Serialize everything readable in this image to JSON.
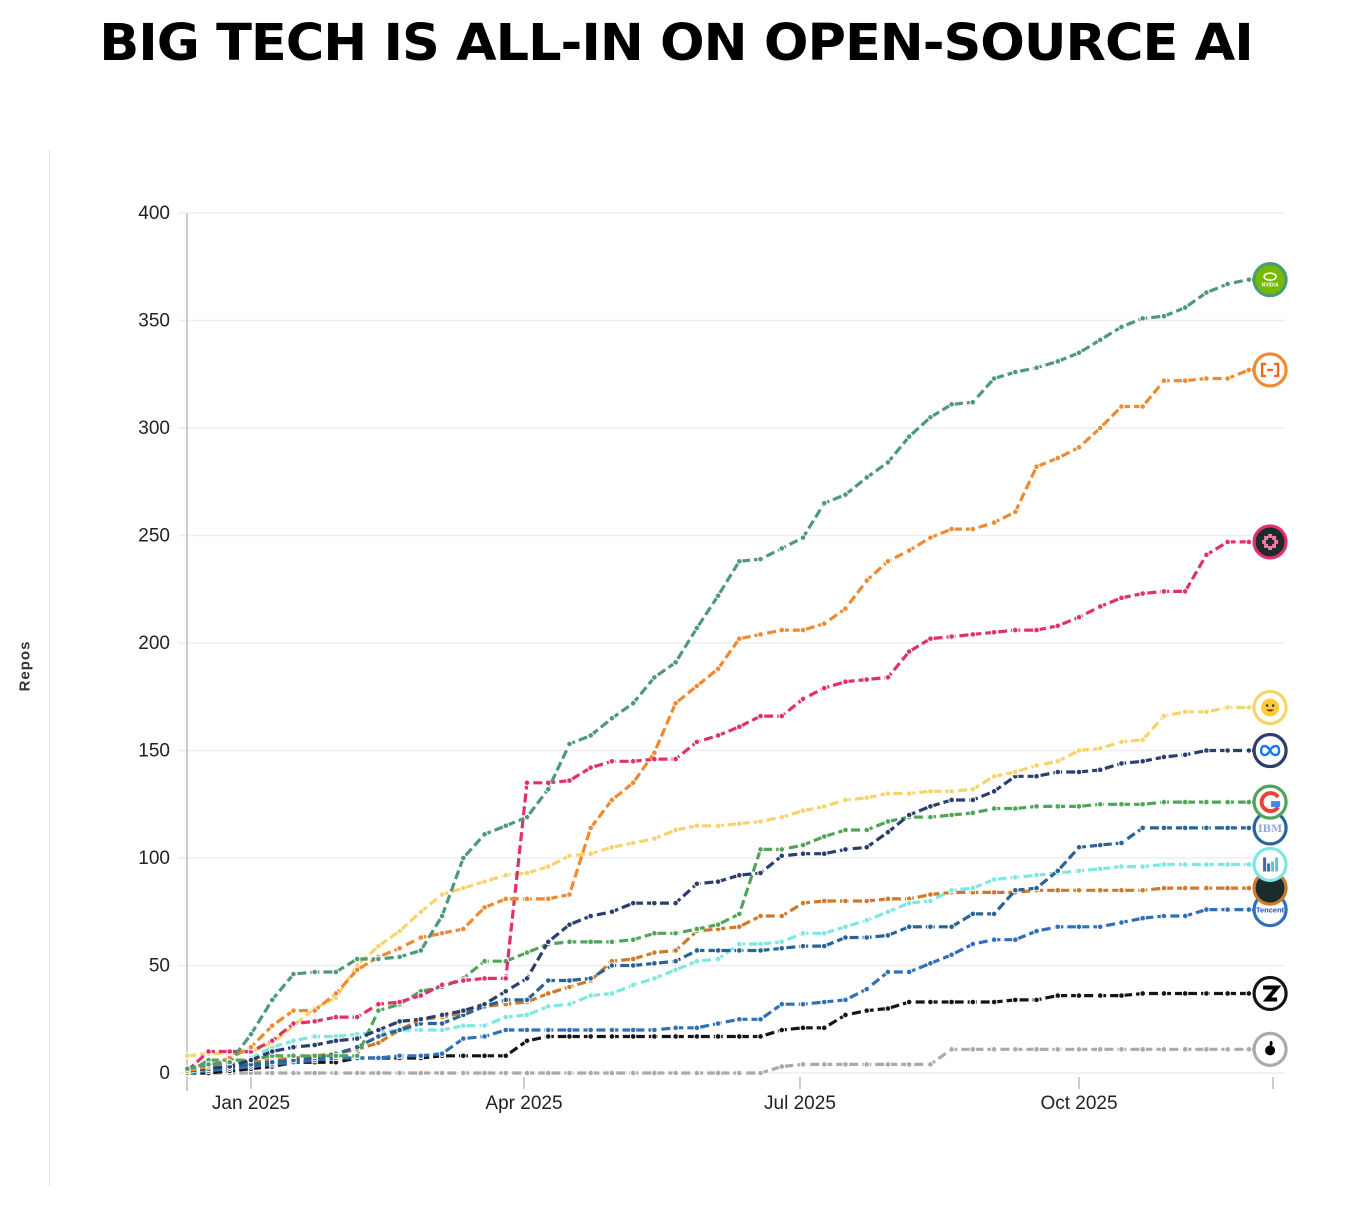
{
  "title": "BIG TECH IS ALL-IN ON OPEN-SOURCE AI",
  "chart_data": {
    "type": "line",
    "title": "BIG TECH IS ALL-IN ON OPEN-SOURCE AI",
    "xlabel": "",
    "ylabel": "Repos",
    "ylim": [
      0,
      400
    ],
    "yticks": [
      "0",
      "50",
      "100",
      "150",
      "200",
      "250",
      "300",
      "350",
      "400"
    ],
    "xticks": [
      {
        "date": "2025-01-01",
        "label": "Jan 2025"
      },
      {
        "date": "2025-04-01",
        "label": "Apr 2025"
      },
      {
        "date": "2025-07-01",
        "label": "Jul 2025"
      },
      {
        "date": "2025-10-01",
        "label": "Oct 2025"
      }
    ],
    "grid": "horizontal",
    "legend": "logos at line ends (right)",
    "x": [
      "2024-12-11",
      "2024-12-18",
      "2024-12-25",
      "2025-01-01",
      "2025-01-08",
      "2025-01-15",
      "2025-01-22",
      "2025-01-29",
      "2025-02-05",
      "2025-02-12",
      "2025-02-19",
      "2025-02-26",
      "2025-03-05",
      "2025-03-12",
      "2025-03-19",
      "2025-03-26",
      "2025-04-02",
      "2025-04-09",
      "2025-04-16",
      "2025-04-23",
      "2025-04-30",
      "2025-05-07",
      "2025-05-14",
      "2025-05-21",
      "2025-05-28",
      "2025-06-04",
      "2025-06-11",
      "2025-06-18",
      "2025-06-25",
      "2025-07-02",
      "2025-07-09",
      "2025-07-16",
      "2025-07-23",
      "2025-07-30",
      "2025-08-06",
      "2025-08-13",
      "2025-08-20",
      "2025-08-27",
      "2025-09-03",
      "2025-09-10",
      "2025-09-17",
      "2025-09-24",
      "2025-10-01",
      "2025-10-08",
      "2025-10-15",
      "2025-10-22",
      "2025-10-29",
      "2025-11-05",
      "2025-11-12",
      "2025-11-19",
      "2025-11-26",
      "2025-12-03"
    ],
    "series": [
      {
        "logo": "nvidia-logo",
        "logo_text": "NVIDIA",
        "color": "#4c9a77",
        "values": [
          2,
          4,
          5,
          18,
          34,
          46,
          47,
          47,
          53,
          53,
          54,
          57,
          73,
          100,
          111,
          115,
          119,
          132,
          153,
          157,
          165,
          172,
          184,
          191,
          207,
          222,
          238,
          239,
          244,
          249,
          265,
          269,
          277,
          284,
          296,
          305,
          311,
          312,
          323,
          326,
          328,
          331,
          335,
          341,
          347,
          351,
          352,
          356,
          363,
          367,
          369,
          369
        ]
      },
      {
        "logo": "alibaba-cloud-logo",
        "color": "#f08a30",
        "values": [
          1,
          3,
          7,
          12,
          22,
          29,
          29,
          37,
          48,
          54,
          58,
          63,
          65,
          67,
          77,
          81,
          81,
          81,
          83,
          114,
          127,
          135,
          149,
          172,
          180,
          188,
          202,
          204,
          206,
          206,
          209,
          216,
          229,
          238,
          243,
          249,
          253,
          253,
          256,
          261,
          282,
          286,
          291,
          300,
          310,
          310,
          322,
          322,
          323,
          323,
          327,
          327
        ]
      },
      {
        "logo": "pink-asterisk-logo",
        "color": "#e0306e",
        "values": [
          1,
          10,
          10,
          10,
          15,
          23,
          24,
          26,
          26,
          32,
          33,
          36,
          41,
          43,
          44,
          44,
          135,
          135,
          136,
          142,
          145,
          145,
          146,
          146,
          154,
          157,
          161,
          166,
          166,
          174,
          179,
          182,
          183,
          184,
          196,
          202,
          203,
          204,
          205,
          206,
          206,
          208,
          212,
          217,
          221,
          223,
          224,
          224,
          241,
          247,
          247,
          247
        ]
      },
      {
        "logo": "hugging-face-logo",
        "color": "#f7d46b",
        "values": [
          8,
          9,
          9,
          10,
          14,
          22,
          30,
          35,
          50,
          59,
          66,
          75,
          83,
          86,
          89,
          92,
          93,
          96,
          101,
          102,
          105,
          107,
          109,
          113,
          115,
          115,
          116,
          117,
          119,
          122,
          124,
          127,
          128,
          130,
          130,
          131,
          131,
          132,
          138,
          140,
          143,
          145,
          150,
          151,
          154,
          155,
          166,
          168,
          168,
          170,
          170,
          170
        ]
      },
      {
        "logo": "meta-logo",
        "color": "#2b3f6e",
        "values": [
          1,
          2,
          3,
          6,
          10,
          12,
          13,
          15,
          16,
          20,
          24,
          25,
          27,
          29,
          32,
          38,
          44,
          61,
          69,
          73,
          75,
          79,
          79,
          79,
          88,
          89,
          92,
          93,
          101,
          102,
          102,
          104,
          105,
          112,
          120,
          124,
          127,
          127,
          131,
          138,
          138,
          140,
          140,
          141,
          144,
          145,
          147,
          148,
          150,
          150,
          150,
          150
        ]
      },
      {
        "logo": "google-logo",
        "color": "#4fa55a",
        "values": [
          0,
          6,
          6,
          6,
          8,
          8,
          8,
          8,
          8,
          29,
          32,
          38,
          40,
          44,
          52,
          52,
          56,
          60,
          61,
          61,
          61,
          62,
          65,
          65,
          67,
          69,
          74,
          104,
          104,
          106,
          110,
          113,
          113,
          117,
          119,
          119,
          120,
          121,
          123,
          123,
          124,
          124,
          124,
          125,
          125,
          125,
          126,
          126,
          126,
          126,
          126,
          126
        ]
      },
      {
        "logo": "ibm-logo",
        "logo_text": "IBM",
        "color": "#2a6496",
        "values": [
          1,
          2,
          3,
          4,
          5,
          6,
          7,
          9,
          12,
          17,
          20,
          23,
          23,
          27,
          31,
          34,
          34,
          43,
          43,
          44,
          50,
          50,
          51,
          52,
          57,
          57,
          57,
          57,
          58,
          59,
          59,
          63,
          63,
          64,
          68,
          68,
          68,
          74,
          74,
          85,
          86,
          94,
          105,
          106,
          107,
          114,
          114,
          114,
          114,
          114,
          114,
          114
        ]
      },
      {
        "logo": "bar-chart-logo",
        "color": "#7de8e0",
        "values": [
          0,
          2,
          3,
          7,
          12,
          15,
          17,
          17,
          18,
          19,
          20,
          20,
          20,
          22,
          22,
          26,
          27,
          31,
          32,
          36,
          37,
          41,
          44,
          48,
          52,
          53,
          60,
          60,
          61,
          65,
          65,
          68,
          71,
          75,
          79,
          80,
          85,
          86,
          90,
          91,
          92,
          93,
          94,
          95,
          96,
          96,
          97,
          97,
          97,
          97,
          97,
          97
        ]
      },
      {
        "logo": "dark-circle-logo",
        "color": "#cf7a2b",
        "values": [
          2,
          3,
          4,
          5,
          6,
          7,
          8,
          9,
          11,
          14,
          20,
          25,
          26,
          28,
          31,
          32,
          33,
          37,
          40,
          43,
          52,
          53,
          56,
          57,
          66,
          67,
          68,
          73,
          73,
          79,
          80,
          80,
          80,
          81,
          81,
          83,
          84,
          84,
          84,
          84,
          85,
          85,
          85,
          85,
          85,
          85,
          86,
          86,
          86,
          86,
          86,
          86
        ]
      },
      {
        "logo": "tencent-logo",
        "logo_text": "Tencent",
        "color": "#2f70b8",
        "values": [
          0,
          1,
          2,
          3,
          4,
          5,
          6,
          7,
          7,
          7,
          8,
          8,
          9,
          16,
          17,
          20,
          20,
          20,
          20,
          20,
          20,
          20,
          20,
          21,
          21,
          23,
          25,
          25,
          32,
          32,
          33,
          34,
          39,
          47,
          47,
          51,
          55,
          60,
          62,
          62,
          66,
          68,
          68,
          68,
          70,
          72,
          73,
          73,
          76,
          76,
          76,
          76
        ]
      },
      {
        "logo": "z-logo",
        "color": "#151515",
        "values": [
          0,
          0,
          1,
          2,
          3,
          5,
          5,
          5,
          7,
          7,
          7,
          7,
          8,
          8,
          8,
          8,
          15,
          17,
          17,
          17,
          17,
          17,
          17,
          17,
          17,
          17,
          17,
          17,
          20,
          21,
          21,
          27,
          29,
          30,
          33,
          33,
          33,
          33,
          33,
          34,
          34,
          36,
          36,
          36,
          36,
          37,
          37,
          37,
          37,
          37,
          37,
          37
        ]
      },
      {
        "logo": "apple-logo",
        "color": "#aaaaaa",
        "values": [
          0,
          0,
          0,
          0,
          0,
          0,
          0,
          0,
          0,
          0,
          0,
          0,
          0,
          0,
          0,
          0,
          0,
          0,
          0,
          0,
          0,
          0,
          0,
          0,
          0,
          0,
          0,
          0,
          3,
          4,
          4,
          4,
          4,
          4,
          4,
          4,
          11,
          11,
          11,
          11,
          11,
          11,
          11,
          11,
          11,
          11,
          11,
          11,
          11,
          11,
          11,
          11
        ]
      }
    ]
  }
}
